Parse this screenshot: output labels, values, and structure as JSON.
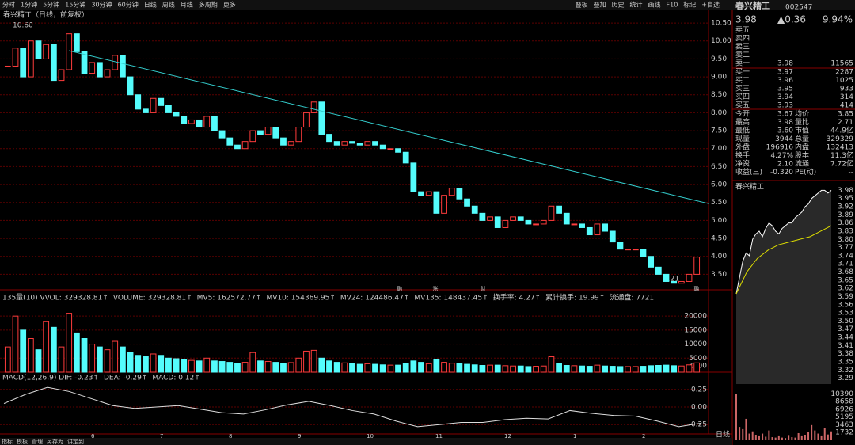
{
  "toolbar": {
    "left": [
      "分时",
      "1分钟",
      "5分钟",
      "15分钟",
      "30分钟",
      "60分钟",
      "日线",
      "周线",
      "月线",
      "多周期",
      "更多"
    ],
    "right": [
      "叠板",
      "叠加",
      "历史",
      "统计",
      "画线",
      "F10",
      "标记",
      "+自选"
    ]
  },
  "main": {
    "title": "春兴精工（日线，前复权）",
    "high_label": "10.60",
    "low_label": "3.21",
    "ylim": [
      3.2,
      10.7
    ],
    "yticks": [
      {
        "value": 3.5,
        "label": "3.50"
      },
      {
        "value": 4,
        "label": "4.00"
      },
      {
        "value": 4.5,
        "label": "4.50"
      },
      {
        "value": 5,
        "label": "5.00"
      },
      {
        "value": 5.5,
        "label": "5.50"
      },
      {
        "value": 6,
        "label": "6.00"
      },
      {
        "value": 6.5,
        "label": "6.50"
      },
      {
        "value": 7,
        "label": "7.00"
      },
      {
        "value": 7.5,
        "label": "7.50"
      },
      {
        "value": 8,
        "label": "8.00"
      },
      {
        "value": 8.5,
        "label": "8.50"
      },
      {
        "value": 9,
        "label": "9.00"
      },
      {
        "value": 9.5,
        "label": "9.50"
      },
      {
        "value": 10,
        "label": "10.00"
      },
      {
        "value": 10.5,
        "label": "10.50"
      }
    ],
    "closes": [
      9.3,
      9.8,
      9.0,
      10.0,
      9.5,
      9.9,
      8.9,
      9.2,
      10.2,
      9.7,
      9.1,
      9.4,
      9.0,
      9.2,
      9.6,
      9.0,
      8.5,
      8.1,
      8.0,
      8.4,
      8.2,
      8.0,
      7.9,
      7.7,
      7.8,
      7.6,
      7.9,
      7.5,
      7.3,
      7.1,
      7.0,
      7.2,
      7.5,
      7.4,
      7.6,
      7.3,
      7.1,
      7.2,
      7.6,
      8.0,
      8.3,
      7.4,
      7.2,
      7.1,
      7.2,
      7.15,
      7.1,
      7.2,
      7.1,
      7.0,
      7.0,
      6.9,
      6.6,
      5.8,
      5.7,
      5.8,
      5.2,
      5.7,
      5.9,
      5.6,
      5.4,
      5.2,
      5.0,
      5.1,
      4.8,
      5.0,
      5.1,
      5.0,
      4.9,
      4.9,
      5.0,
      5.4,
      5.2,
      4.9,
      4.9,
      4.8,
      4.6,
      4.9,
      4.7,
      4.4,
      4.2,
      4.2,
      4.2,
      4.0,
      3.7,
      3.5,
      3.3,
      3.25,
      3.3,
      3.5,
      3.98
    ],
    "trendline": [
      9.73,
      5.47
    ],
    "markers": [
      "融",
      "涨",
      "财",
      "融"
    ]
  },
  "volume": {
    "header": [
      "135量(10) VVOL: 329328.81↑",
      "VOLUME: 329328.81↑",
      "MV5: 162572.77↑",
      "MV10: 154369.95↑",
      "MV24: 124486.47↑",
      "MV135: 148437.45↑",
      "换手率: 4.27↑",
      "累计换手: 19.99↑",
      "流通盘: 7721"
    ],
    "ylim": [
      0,
      24000
    ],
    "yticks": [
      5000,
      10000,
      15000,
      20000
    ],
    "unit": "X100",
    "values": [
      9000,
      20000,
      15000,
      12000,
      8000,
      18000,
      16000,
      9000,
      21000,
      14000,
      12000,
      10000,
      9000,
      8000,
      11000,
      9000,
      7000,
      6000,
      5500,
      6500,
      6000,
      5000,
      4800,
      4500,
      4200,
      4000,
      5000,
      4000,
      3800,
      3500,
      3200,
      3500,
      7000,
      4000,
      3800,
      3500,
      3000,
      3400,
      5000,
      7500,
      7800,
      5000,
      4000,
      3500,
      3300,
      3000,
      2800,
      3000,
      2800,
      2600,
      2500,
      2500,
      3000,
      4000,
      3500,
      3000,
      4500,
      3500,
      3200,
      3000,
      2800,
      2600,
      2400,
      2500,
      2500,
      2300,
      2200,
      2200,
      2000,
      2100,
      2200,
      5500,
      3000,
      2400,
      2300,
      2200,
      2100,
      2500,
      2200,
      2100,
      2000,
      2000,
      2000,
      2100,
      2300,
      2400,
      2500,
      2300,
      2200,
      2600,
      3300
    ]
  },
  "macd": {
    "header": [
      "MACD(12,26,9) DIF: -0.23↑",
      "DEA: -0.29↑",
      "MACD: 0.12↑"
    ],
    "ylim": [
      -0.36,
      0.36
    ],
    "yticks": [
      -0.25,
      {
        "value": 0,
        "label": "0.00"
      },
      0.25
    ],
    "dif": [
      0.05,
      0.18,
      0.28,
      0.22,
      0.12,
      0.02,
      -0.02,
      0.0,
      0.02,
      -0.03,
      -0.08,
      -0.1,
      -0.04,
      0.03,
      0.08,
      0.02,
      -0.05,
      -0.1,
      -0.2,
      -0.28,
      -0.25,
      -0.22,
      -0.22,
      -0.18,
      -0.16,
      -0.17,
      -0.05,
      -0.09,
      -0.12,
      -0.13,
      -0.2,
      -0.28,
      -0.23
    ]
  },
  "dates": [
    "6",
    "7",
    "8",
    "9",
    "10",
    "11",
    "12",
    "1",
    "2"
  ],
  "tabs": [
    "指标",
    "模板",
    "管理",
    "另存为",
    "讲定到"
  ],
  "quote": {
    "name": "春兴精工",
    "code": "002547",
    "price": "3.98",
    "change": "▲0.36",
    "pct": "9.94%",
    "sells": [
      [
        "卖五",
        "",
        ""
      ],
      [
        "卖四",
        "",
        ""
      ],
      [
        "卖三",
        "",
        ""
      ],
      [
        "卖二",
        "",
        ""
      ],
      [
        "卖一",
        "3.98",
        "11565"
      ]
    ],
    "buys": [
      [
        "买一",
        "3.97",
        "2287"
      ],
      [
        "买二",
        "3.96",
        "1025"
      ],
      [
        "买三",
        "3.95",
        "933"
      ],
      [
        "买四",
        "3.94",
        "314"
      ],
      [
        "买五",
        "3.93",
        "414"
      ]
    ],
    "stats": [
      [
        "今开",
        "3.67",
        "均价",
        "3.85"
      ],
      [
        "最高",
        "3.98",
        "量比",
        "2.71"
      ],
      [
        "最低",
        "3.60",
        "市值",
        "44.9亿"
      ],
      [
        "现量",
        "3944",
        "总量",
        "329329"
      ],
      [
        "外盘",
        "196916",
        "内盘",
        "132413"
      ],
      [
        "换手",
        "4.27%",
        "股本",
        "11.3亿"
      ],
      [
        "净资",
        "2.10",
        "流通",
        "7.72亿"
      ],
      [
        "收益(三)",
        "-0.320",
        "PE(动)",
        "--"
      ]
    ]
  },
  "intraday": {
    "title": "春兴精工",
    "period": "日线",
    "ylim": [
      3.28,
      3.99
    ],
    "yticks": [
      3.98,
      3.95,
      3.92,
      3.89,
      3.86,
      3.83,
      {
        "value": 3.8,
        "label": "3.80"
      },
      3.77,
      3.74,
      3.71,
      3.68,
      3.65,
      3.62,
      3.59,
      3.56,
      3.53,
      {
        "value": 3.5,
        "label": "3.50"
      },
      3.47,
      3.44,
      3.41,
      3.38,
      3.35,
      3.32,
      3.29
    ],
    "prices": [
      3.6,
      3.66,
      3.72,
      3.75,
      3.74,
      3.8,
      3.82,
      3.83,
      3.81,
      3.84,
      3.86,
      3.85,
      3.83,
      3.82,
      3.84,
      3.85,
      3.86,
      3.86,
      3.88,
      3.89,
      3.9,
      3.92,
      3.93,
      3.95,
      3.96,
      3.97,
      3.98,
      3.98,
      3.97,
      3.98
    ],
    "avg": [
      3.6,
      3.68,
      3.73,
      3.76,
      3.78,
      3.79,
      3.8,
      3.81,
      3.83,
      3.85
    ],
    "vticks": [
      10390,
      8658,
      6926,
      5195,
      3463,
      1732
    ],
    "vlim": [
      0,
      11000
    ],
    "vols": [
      10390,
      3000,
      2500,
      4800,
      1500,
      2000,
      1200,
      900,
      1500,
      800,
      2200,
      700,
      600,
      900,
      600,
      500,
      1000,
      700,
      600,
      1600,
      900,
      1200,
      1800,
      3400,
      2200,
      1500,
      900,
      2800,
      1300,
      2000
    ]
  }
}
